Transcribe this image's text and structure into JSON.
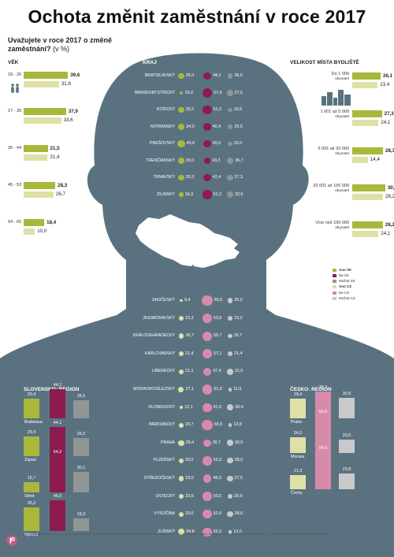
{
  "title": "Ochota změnit zaměstnání v roce 2017",
  "question": "Uvažujete v roce 2017 o změně zaměstnání?",
  "unit": "(v %)",
  "footnote": "Výsledky průzkumu jsou pro sledované skupiny reprezentativní. Průzkum realizovala společnost Ipsos na vzorku 1 500 respondentů ve věku 18–65 let v období prosince 2016 a ledna 2017. Data: Grafton Recruitment. Zpracování: Profesia.",
  "logo": "Profesia",
  "colors": {
    "ano_sk": "#a9b83a",
    "ne_sk": "#8c1c4f",
    "mozna_sk": "#8f9696",
    "ano_cz": "#dfe0a6",
    "ne_cz": "#d88aaa",
    "mozna_cz": "#c9c9c9",
    "silhouette": "#5a7280"
  },
  "chart_data": [
    {
      "type": "bar",
      "title": "VĚK",
      "categories": [
        "18 - 26",
        "27 - 35",
        "36 - 44",
        "45 - 53",
        "54 - 65"
      ],
      "series": [
        {
          "name": "Ano SK",
          "values": [
            39.6,
            37.9,
            21.5,
            28.3,
            18.4
          ]
        },
        {
          "name": "Ano CZ",
          "values": [
            31.6,
            33.6,
            21.4,
            26.7,
            10.0
          ]
        }
      ]
    },
    {
      "type": "bar",
      "title": "VELIKOST MÍSTA BYDLIŠTĚ",
      "categories": [
        {
          "line1": "Do 1 000",
          "line2": "obyvatel"
        },
        {
          "line1": "1 001 až 5 000",
          "line2": "obyvatel"
        },
        {
          "line1": "5 001 až 20 000",
          "line2": "obyvatel"
        },
        {
          "line1": "20 001 až 100 000",
          "line2": "obyvatel"
        },
        {
          "line1": "Více než 100 000",
          "line2": "obyvatel"
        }
      ],
      "series": [
        {
          "name": "Ano SK",
          "values": [
            26.1,
            27.3,
            28.3,
            30.3,
            28.2
          ]
        },
        {
          "name": "Ano CZ",
          "values": [
            23.4,
            24.1,
            14.4,
            28.2,
            24.1
          ]
        }
      ]
    },
    {
      "type": "table",
      "title": "KRAJ",
      "columns": [
        "Ano",
        "Ne",
        "Možná"
      ],
      "rows": [
        {
          "name": "BRATISLAVSKÝ",
          "values": [
            29.4,
            44.1,
            26.5
          ]
        },
        {
          "name": "BANSKOBYSTRICKÝ",
          "values": [
            15.0,
            57.5,
            27.5
          ]
        },
        {
          "name": "KOŠICKÝ",
          "values": [
            30.2,
            51.2,
            18.6
          ]
        },
        {
          "name": "NITRIANSKY",
          "values": [
            34.0,
            40.4,
            25.5
          ]
        },
        {
          "name": "PREŠOVSKÝ",
          "values": [
            40.0,
            40.0,
            20.0
          ]
        },
        {
          "name": "TRENČIANSKY",
          "values": [
            30.0,
            33.3,
            36.7
          ]
        },
        {
          "name": "TRNAVSKÝ",
          "values": [
            30.3,
            42.4,
            27.3
          ]
        },
        {
          "name": "ŽILINSKÝ",
          "values": [
            16.3,
            51.2,
            32.6
          ]
        }
      ]
    },
    {
      "type": "table",
      "title": "",
      "columns": [
        "Ano",
        "Ne",
        "Možná"
      ],
      "rows": [
        {
          "name": "JIHOČESKÝ",
          "values": [
            9.4,
            65.6,
            25.0
          ]
        },
        {
          "name": "JIHOMORAVSKÝ",
          "values": [
            23.2,
            53.6,
            23.2
          ]
        },
        {
          "name": "KRÁLOVEHRADECKÝ",
          "values": [
            26.7,
            56.7,
            16.7
          ]
        },
        {
          "name": "KARLOVARSKÝ",
          "values": [
            21.4,
            57.1,
            21.4
          ]
        },
        {
          "name": "LIBERECKÝ",
          "values": [
            21.1,
            47.4,
            31.6
          ]
        },
        {
          "name": "MORAVSKOSLEZSKÝ",
          "values": [
            27.1,
            61.0,
            11.9
          ]
        },
        {
          "name": "OLOMOUCKÝ",
          "values": [
            12.1,
            51.5,
            36.4
          ]
        },
        {
          "name": "PARDUBICKÝ",
          "values": [
            20.7,
            65.5,
            13.8
          ]
        },
        {
          "name": "PRAHA",
          "values": [
            29.4,
            39.7,
            30.9
          ]
        },
        {
          "name": "PLZEŇSKÝ",
          "values": [
            20.0,
            52.0,
            28.0
          ]
        },
        {
          "name": "STŘEDOČESKÝ",
          "values": [
            23.0,
            49.3,
            27.5
          ]
        },
        {
          "name": "ÚSTECKÝ",
          "values": [
            23.6,
            53.5,
            20.9
          ]
        },
        {
          "name": "VYSOČINA",
          "values": [
            20.0,
            52.0,
            28.0
          ]
        },
        {
          "name": "ZLÍNSKÝ",
          "values": [
            34.8,
            52.2,
            13.0
          ]
        }
      ]
    },
    {
      "type": "bar",
      "title": "SLOVENSKO: REGION",
      "columns": [
        "Ano",
        "Ne",
        "Možná"
      ],
      "groups": [
        {
          "name": "Bratislava",
          "values": [
            29.4,
            44.1,
            26.5
          ]
        },
        {
          "name": "Západ",
          "values": [
            29.4,
            44.1,
            26.5
          ]
        },
        {
          "name": "Střed",
          "values": [
            15.7,
            54.2,
            30.1
          ]
        },
        {
          "name": "Východ",
          "values": [
            35.2,
            45.5,
            19.3
          ]
        }
      ]
    },
    {
      "type": "bar",
      "title": "ČESKO: REGION",
      "columns": [
        "Ano",
        "Ne",
        "Možná"
      ],
      "groups": [
        {
          "name": "Praha",
          "values": [
            29.4,
            39.7,
            30.9
          ]
        },
        {
          "name": "Morava",
          "values": [
            24.0,
            55.6,
            20.5
          ]
        },
        {
          "name": "Čechy",
          "values": [
            21.3,
            54.9,
            23.8
          ]
        }
      ]
    }
  ],
  "legend": [
    {
      "label": "Ano SK",
      "color": "#a9b83a",
      "bold": true
    },
    {
      "label": "Ne SK",
      "color": "#8c1c4f",
      "bold": false
    },
    {
      "label": "Možná SK",
      "color": "#8f9696",
      "bold": false
    },
    {
      "label": "Ano CZ",
      "color": "#dfe0a6",
      "bold": true
    },
    {
      "label": "Ne CZ",
      "color": "#d88aaa",
      "bold": false
    },
    {
      "label": "Možná CZ",
      "color": "#c9c9c9",
      "bold": false
    }
  ]
}
